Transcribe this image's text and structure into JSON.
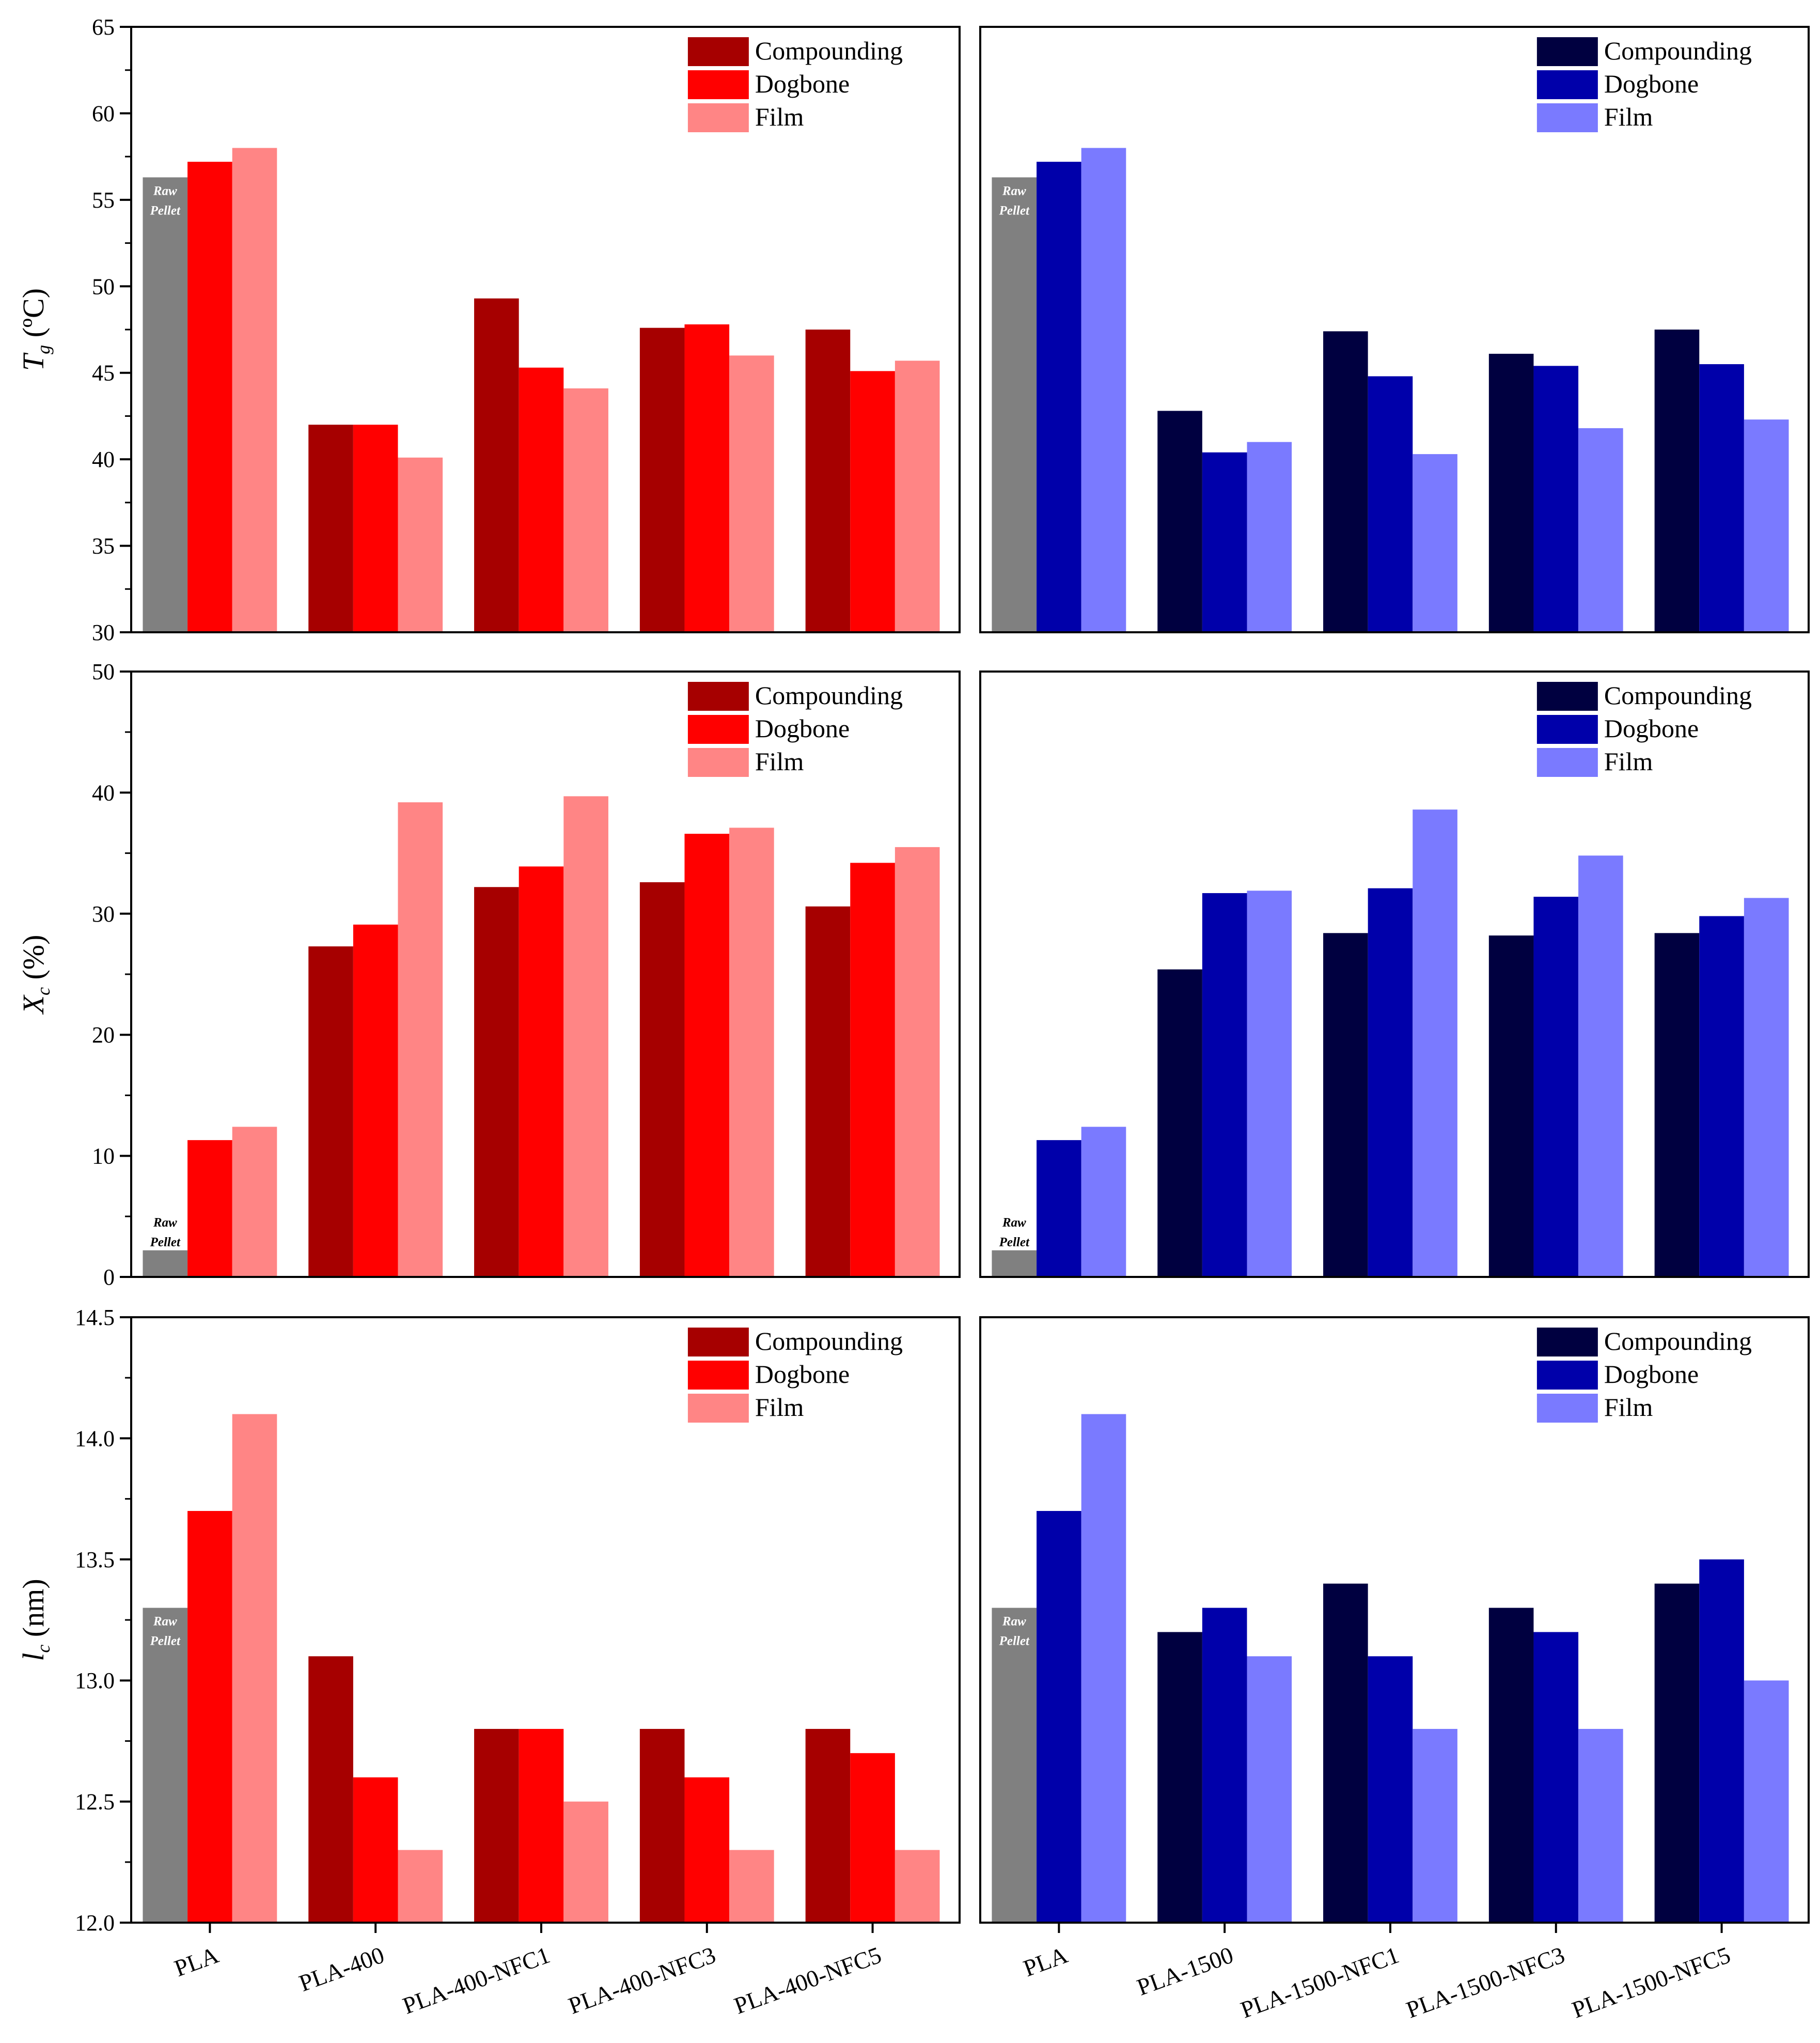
{
  "chart_data": [
    {
      "type": "bar",
      "panel": "top-left",
      "categories": [
        "PLA",
        "PLA-400",
        "PLA-400-NFC1",
        "PLA-400-NFC3",
        "PLA-400-NFC5"
      ],
      "series": [
        {
          "name": "Compounding",
          "values": [
            56.3,
            42.0,
            49.3,
            47.6,
            47.5
          ]
        },
        {
          "name": "Dogbone",
          "values": [
            57.2,
            42.0,
            45.3,
            47.8,
            45.1
          ]
        },
        {
          "name": "Film",
          "values": [
            58.0,
            40.1,
            44.1,
            46.0,
            45.7
          ]
        }
      ],
      "ylabel_main": "T",
      "ylabel_sub": "g",
      "ylabel_unit": " (ºC)",
      "ylim": [
        30,
        65
      ],
      "yticks": [
        "30",
        "35",
        "40",
        "45",
        "50",
        "55",
        "60",
        "65"
      ],
      "annotation": [
        "Raw",
        "Pellet"
      ],
      "legend": "top-right",
      "colors": [
        "#a60000",
        "#ff0000",
        "#ff8585"
      ]
    },
    {
      "type": "bar",
      "panel": "top-right",
      "categories": [
        "PLA",
        "PLA-1500",
        "PLA-1500-NFC1",
        "PLA-1500-NFC3",
        "PLA-1500-NFC5"
      ],
      "series": [
        {
          "name": "Compounding",
          "values": [
            56.3,
            42.8,
            47.4,
            46.1,
            47.5
          ]
        },
        {
          "name": "Dogbone",
          "values": [
            57.2,
            40.4,
            44.8,
            45.4,
            45.5
          ]
        },
        {
          "name": "Film",
          "values": [
            58.0,
            41.0,
            40.3,
            41.8,
            42.3
          ]
        }
      ],
      "ylim": [
        30,
        65
      ],
      "annotation": [
        "Raw",
        "Pellet"
      ],
      "legend": "top-right",
      "colors": [
        "#000040",
        "#0000aa",
        "#7a7aff"
      ]
    },
    {
      "type": "bar",
      "panel": "middle-left",
      "categories": [
        "PLA",
        "PLA-400",
        "PLA-400-NFC1",
        "PLA-400-NFC3",
        "PLA-400-NFC5"
      ],
      "series": [
        {
          "name": "Compounding",
          "values": [
            2.2,
            27.3,
            32.2,
            32.6,
            30.6
          ]
        },
        {
          "name": "Dogbone",
          "values": [
            11.3,
            29.1,
            33.9,
            36.6,
            34.2
          ]
        },
        {
          "name": "Film",
          "values": [
            12.4,
            39.2,
            39.7,
            37.1,
            35.5
          ]
        }
      ],
      "ylabel_main": "X",
      "ylabel_sub": "c",
      "ylabel_unit": " (%)",
      "ylim": [
        0,
        50
      ],
      "yticks": [
        "0",
        "10",
        "20",
        "30",
        "40",
        "50"
      ],
      "annotation": [
        "Raw",
        "Pellet"
      ],
      "legend": "top-right",
      "colors": [
        "#a60000",
        "#ff0000",
        "#ff8585"
      ]
    },
    {
      "type": "bar",
      "panel": "middle-right",
      "categories": [
        "PLA",
        "PLA-1500",
        "PLA-1500-NFC1",
        "PLA-1500-NFC3",
        "PLA-1500-NFC5"
      ],
      "series": [
        {
          "name": "Compounding",
          "values": [
            2.2,
            25.4,
            28.4,
            28.2,
            28.4
          ]
        },
        {
          "name": "Dogbone",
          "values": [
            11.3,
            31.7,
            32.1,
            31.4,
            29.8
          ]
        },
        {
          "name": "Film",
          "values": [
            12.4,
            31.9,
            38.6,
            34.8,
            31.3
          ]
        }
      ],
      "ylim": [
        0,
        50
      ],
      "annotation": [
        "Raw",
        "Pellet"
      ],
      "legend": "top-right",
      "colors": [
        "#000040",
        "#0000aa",
        "#7a7aff"
      ]
    },
    {
      "type": "bar",
      "panel": "bottom-left",
      "categories": [
        "PLA",
        "PLA-400",
        "PLA-400-NFC1",
        "PLA-400-NFC3",
        "PLA-400-NFC5"
      ],
      "series": [
        {
          "name": "Compounding",
          "values": [
            13.3,
            13.1,
            12.8,
            12.8,
            12.8
          ]
        },
        {
          "name": "Dogbone",
          "values": [
            13.7,
            12.6,
            12.8,
            12.6,
            12.7
          ]
        },
        {
          "name": "Film",
          "values": [
            14.1,
            12.3,
            12.5,
            12.3,
            12.3
          ]
        }
      ],
      "ylabel_main": "l",
      "ylabel_sub": "c",
      "ylabel_unit": " (nm)",
      "ylim": [
        12.0,
        14.5
      ],
      "yticks": [
        "12.0",
        "12.5",
        "13.0",
        "13.5",
        "14.0",
        "14.5"
      ],
      "annotation": [
        "Raw",
        "Pellet"
      ],
      "legend": "top-right",
      "colors": [
        "#a60000",
        "#ff0000",
        "#ff8585"
      ]
    },
    {
      "type": "bar",
      "panel": "bottom-right",
      "categories": [
        "PLA",
        "PLA-1500",
        "PLA-1500-NFC1",
        "PLA-1500-NFC3",
        "PLA-1500-NFC5"
      ],
      "series": [
        {
          "name": "Compounding",
          "values": [
            13.3,
            13.2,
            13.4,
            13.3,
            13.4
          ]
        },
        {
          "name": "Dogbone",
          "values": [
            13.7,
            13.3,
            13.1,
            13.2,
            13.5
          ]
        },
        {
          "name": "Film",
          "values": [
            14.1,
            13.1,
            12.8,
            12.8,
            13.0
          ]
        }
      ],
      "ylim": [
        12.0,
        14.5
      ],
      "annotation": [
        "Raw",
        "Pellet"
      ],
      "legend": "top-right",
      "colors": [
        "#000040",
        "#0000aa",
        "#7a7aff"
      ]
    }
  ],
  "raw_color": "#808080"
}
